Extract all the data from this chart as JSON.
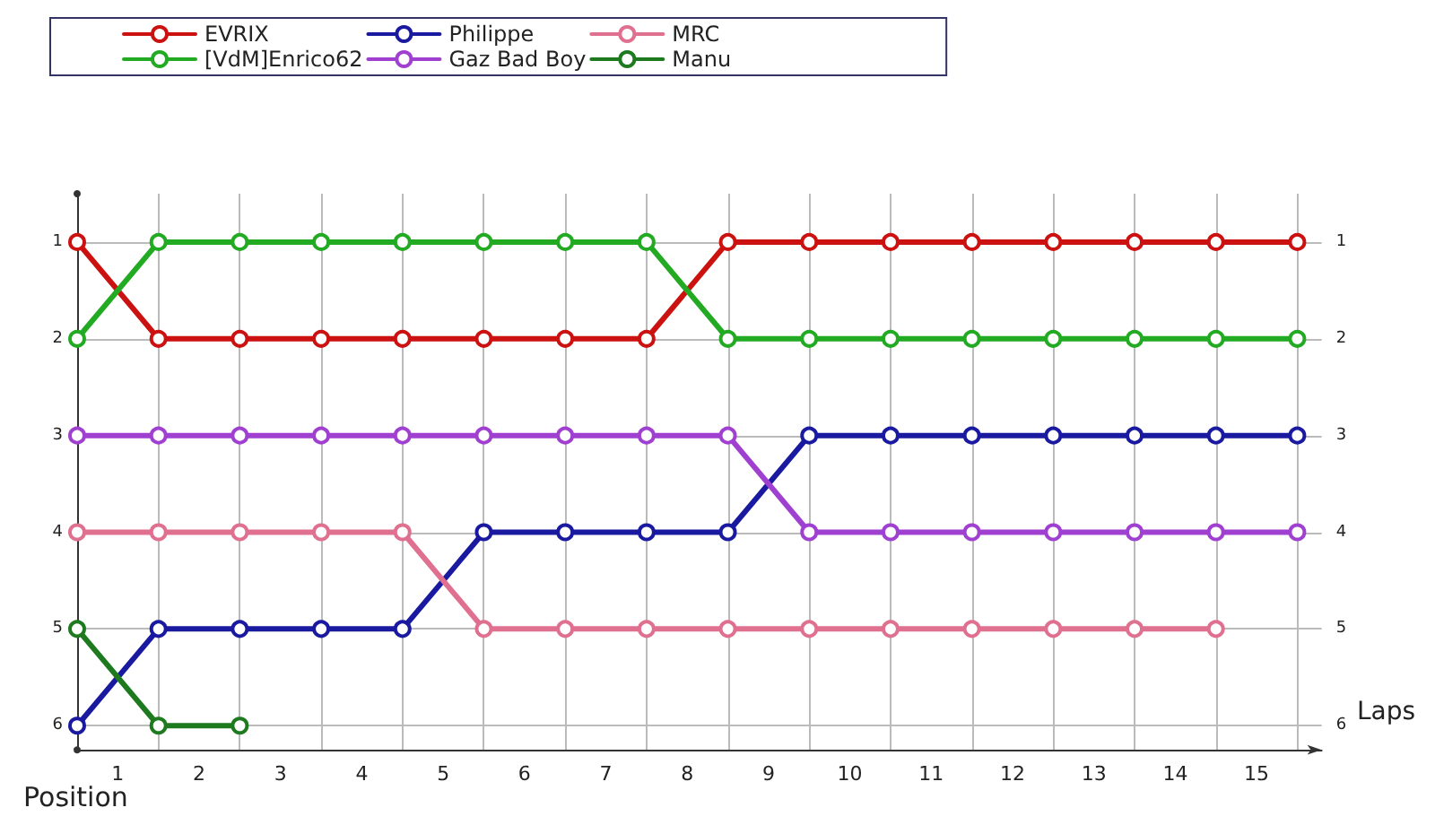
{
  "chart_data": {
    "type": "line",
    "xlabel": "Laps",
    "ylabel": "Position",
    "x": [
      0,
      1,
      2,
      3,
      4,
      5,
      6,
      7,
      8,
      9,
      10,
      11,
      12,
      13,
      14,
      15
    ],
    "series": [
      {
        "name": "EVRIX",
        "color": "#cc1111",
        "values": [
          1,
          2,
          2,
          2,
          2,
          2,
          2,
          2,
          1,
          1,
          1,
          1,
          1,
          1,
          1,
          1
        ]
      },
      {
        "name": "[VdM]Enrico62",
        "color": "#22aa22",
        "values": [
          2,
          1,
          1,
          1,
          1,
          1,
          1,
          1,
          2,
          2,
          2,
          2,
          2,
          2,
          2,
          2
        ]
      },
      {
        "name": "Philippe",
        "color": "#1a1aa0",
        "values": [
          6,
          5,
          5,
          5,
          5,
          4,
          4,
          4,
          4,
          3,
          3,
          3,
          3,
          3,
          3,
          3
        ]
      },
      {
        "name": "Gaz Bad Boy",
        "color": "#a040d0",
        "values": [
          3,
          3,
          3,
          3,
          3,
          3,
          3,
          3,
          3,
          4,
          4,
          4,
          4,
          4,
          4,
          4
        ]
      },
      {
        "name": "MRC",
        "color": "#e07090",
        "values": [
          4,
          4,
          4,
          4,
          4,
          5,
          5,
          5,
          5,
          5,
          5,
          5,
          5,
          5,
          5,
          null
        ]
      },
      {
        "name": "Manu",
        "color": "#1e7a1e",
        "values": [
          5,
          6,
          6,
          null,
          null,
          null,
          null,
          null,
          null,
          null,
          null,
          null,
          null,
          null,
          null,
          null
        ]
      }
    ],
    "xlim": [
      0,
      15.3
    ],
    "xticks": [
      {
        "value": 0,
        "label": null
      },
      {
        "value": 0.5,
        "label": "1"
      },
      {
        "value": 1,
        "label": null
      },
      {
        "value": 1.5,
        "label": "2"
      },
      {
        "value": 2,
        "label": null
      },
      {
        "value": 2.5,
        "label": "3"
      },
      {
        "value": 3,
        "label": null
      },
      {
        "value": 3.5,
        "label": "4"
      },
      {
        "value": 4,
        "label": null
      },
      {
        "value": 4.5,
        "label": "5"
      },
      {
        "value": 5,
        "label": null
      },
      {
        "value": 5.5,
        "label": "6"
      },
      {
        "value": 6,
        "label": null
      },
      {
        "value": 6.5,
        "label": "7"
      },
      {
        "value": 7,
        "label": null
      },
      {
        "value": 7.5,
        "label": "8"
      },
      {
        "value": 8,
        "label": null
      },
      {
        "value": 8.5,
        "label": "9"
      },
      {
        "value": 9,
        "label": null
      },
      {
        "value": 9.5,
        "label": "10"
      },
      {
        "value": 10,
        "label": null
      },
      {
        "value": 10.5,
        "label": "11"
      },
      {
        "value": 11,
        "label": null
      },
      {
        "value": 11.5,
        "label": "12"
      },
      {
        "value": 12,
        "label": null
      },
      {
        "value": 12.5,
        "label": "13"
      },
      {
        "value": 13,
        "label": null
      },
      {
        "value": 13.5,
        "label": "14"
      },
      {
        "value": 14,
        "label": null
      },
      {
        "value": 14.5,
        "label": "15"
      },
      {
        "value": 15,
        "label": null
      }
    ],
    "ylim": [
      6.25,
      0.5
    ],
    "yticks": [
      1,
      2,
      3,
      4,
      5,
      6
    ],
    "y2lim": [
      6.25,
      0.5
    ],
    "y2ticks": [
      1,
      2,
      3,
      4,
      5,
      6
    ],
    "grid": true,
    "legend": "top",
    "marker": "circle",
    "line_style": "solid"
  }
}
